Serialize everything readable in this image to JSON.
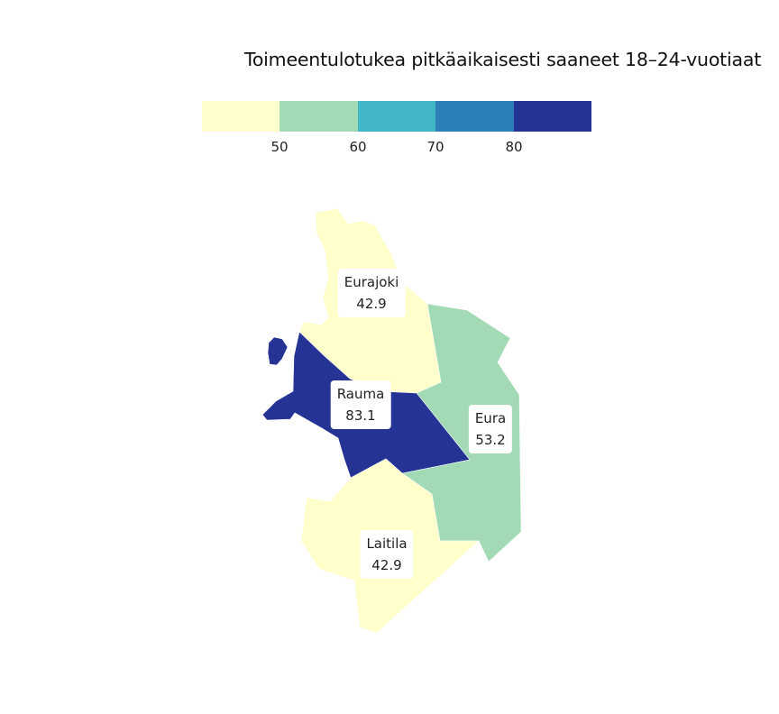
{
  "title": "Toimeentulotukea pitkäaikaisesti saaneet 18–24-vuotiaat",
  "legend": {
    "colors": [
      "#ffffcc",
      "#a1dab4",
      "#41b6c4",
      "#2c7fb8",
      "#253494"
    ],
    "breaks": [
      "50",
      "60",
      "70",
      "80"
    ]
  },
  "chart_data": {
    "type": "choropleth",
    "title": "Toimeentulotukea pitkäaikaisesti saaneet 18–24-vuotiaat",
    "color_breaks": [
      50,
      60,
      70,
      80
    ],
    "regions": [
      {
        "name": "Eurajoki",
        "value": "42.9",
        "color": "#ffffcc"
      },
      {
        "name": "Rauma",
        "value": "83.1",
        "color": "#253494"
      },
      {
        "name": "Eura",
        "value": "53.2",
        "color": "#a1dab4"
      },
      {
        "name": "Laitila",
        "value": "42.9",
        "color": "#ffffcc"
      }
    ]
  }
}
